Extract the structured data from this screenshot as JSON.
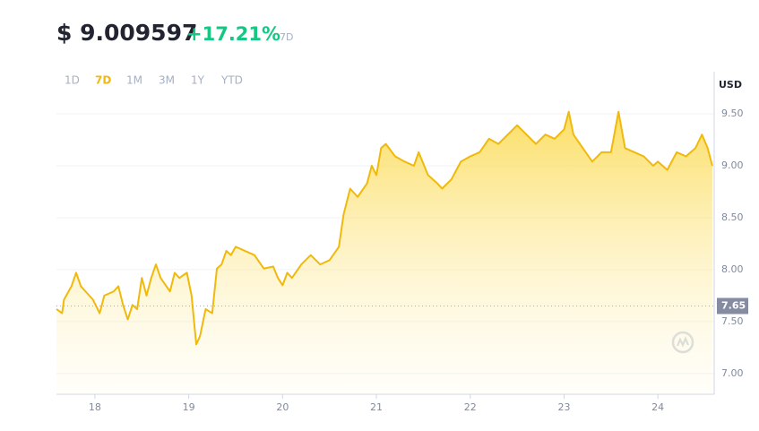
{
  "header": {
    "price": "$ 9.009597",
    "change": "+17.21%",
    "period": "7D"
  },
  "ranges": {
    "options": [
      "1D",
      "7D",
      "1M",
      "3M",
      "1Y",
      "YTD"
    ],
    "active": 1
  },
  "chart_data": {
    "type": "area",
    "currency": "USD",
    "color": "#f0b90b",
    "x": [
      17.59,
      17.65,
      17.67,
      17.75,
      17.8,
      17.85,
      17.9,
      17.98,
      18.05,
      18.1,
      18.2,
      18.25,
      18.3,
      18.35,
      18.4,
      18.45,
      18.5,
      18.55,
      18.6,
      18.65,
      18.7,
      18.8,
      18.85,
      18.9,
      18.98,
      19.03,
      19.08,
      19.12,
      19.18,
      19.25,
      19.3,
      19.35,
      19.4,
      19.45,
      19.5,
      19.6,
      19.7,
      19.8,
      19.9,
      19.95,
      20.0,
      20.05,
      20.1,
      20.2,
      20.3,
      20.4,
      20.5,
      20.6,
      20.65,
      20.72,
      20.8,
      20.9,
      20.95,
      21.0,
      21.05,
      21.1,
      21.2,
      21.3,
      21.4,
      21.45,
      21.55,
      21.65,
      21.7,
      21.8,
      21.9,
      22.0,
      22.1,
      22.2,
      22.3,
      22.4,
      22.5,
      22.6,
      22.7,
      22.8,
      22.9,
      23.0,
      23.05,
      23.1,
      23.2,
      23.3,
      23.4,
      23.5,
      23.58,
      23.65,
      23.75,
      23.85,
      23.95,
      24.0,
      24.1,
      24.2,
      24.3,
      24.4,
      24.47,
      24.53,
      24.58
    ],
    "values": [
      7.62,
      7.58,
      7.71,
      7.84,
      7.97,
      7.84,
      7.79,
      7.71,
      7.58,
      7.75,
      7.79,
      7.84,
      7.66,
      7.52,
      7.66,
      7.62,
      7.92,
      7.75,
      7.92,
      8.05,
      7.92,
      7.79,
      7.97,
      7.92,
      7.97,
      7.75,
      7.28,
      7.36,
      7.62,
      7.58,
      8.01,
      8.05,
      8.18,
      8.14,
      8.22,
      8.18,
      8.14,
      8.01,
      8.03,
      7.92,
      7.85,
      7.97,
      7.92,
      8.05,
      8.14,
      8.05,
      8.09,
      8.22,
      8.53,
      8.78,
      8.7,
      8.83,
      9.0,
      8.91,
      9.17,
      9.21,
      9.09,
      9.04,
      9.0,
      9.13,
      8.91,
      8.83,
      8.78,
      8.87,
      9.04,
      9.09,
      9.13,
      9.26,
      9.21,
      9.3,
      9.39,
      9.3,
      9.21,
      9.3,
      9.26,
      9.35,
      9.52,
      9.3,
      9.17,
      9.04,
      9.13,
      9.13,
      9.52,
      9.17,
      9.13,
      9.09,
      9.0,
      9.04,
      8.96,
      9.13,
      9.09,
      9.17,
      9.3,
      9.17,
      9.0
    ],
    "xlim": [
      17.59,
      24.6
    ],
    "xticks": [
      18,
      19,
      20,
      21,
      22,
      23,
      24
    ],
    "ylim": [
      6.8,
      9.69
    ],
    "yticks": [
      {
        "value": 7,
        "label": "7.00"
      },
      {
        "value": 7.5,
        "label": "7.50"
      },
      {
        "value": 8,
        "label": "8.00"
      },
      {
        "value": 8.5,
        "label": "8.50"
      },
      {
        "value": 9,
        "label": "9.00"
      },
      {
        "value": 9.5,
        "label": "9.50"
      }
    ],
    "reference": {
      "value": 7.65,
      "label": "7.65"
    },
    "grid": true
  }
}
